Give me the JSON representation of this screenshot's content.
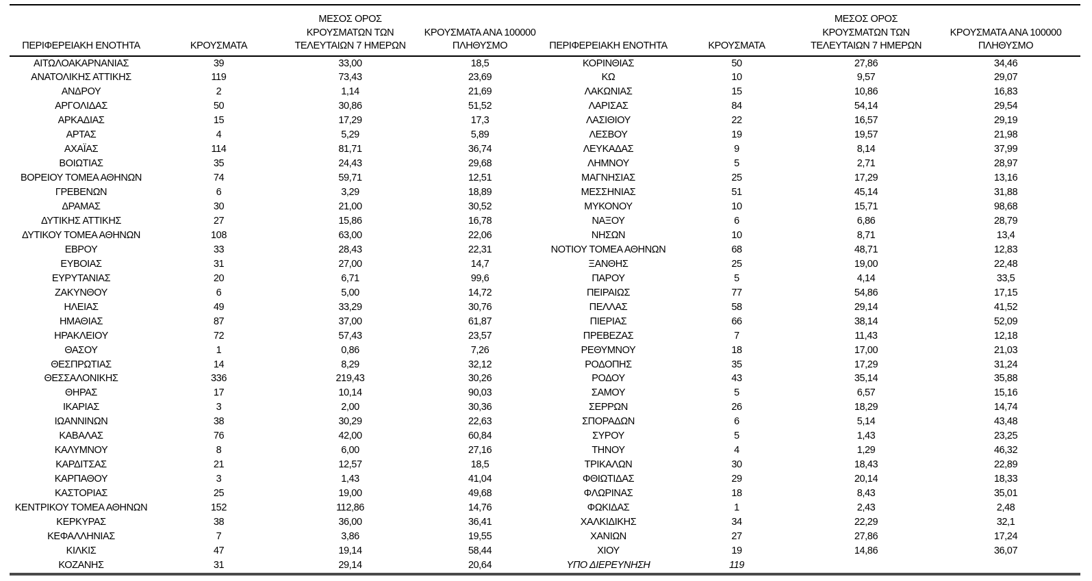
{
  "columns": {
    "region": "ΠΕΡΙΦΕΡΕΙΑΚΗ ΕΝΟΤΗΤΑ",
    "cases": "ΚΡΟΥΣΜΑΤΑ",
    "avg7": "ΜΕΣΟΣ ΟΡΟΣ\nΚΡΟΥΣΜΑΤΩΝ ΤΩΝ\nΤΕΛΕΥΤΑΙΩΝ 7 ΗΜΕΡΩΝ",
    "per100k": "ΚΡΟΥΣΜΑΤΑ ΑΝΑ 100000\nΠΛΗΘΥΣΜΟ"
  },
  "colors": {
    "text": "#000000",
    "rule_top": "#000000",
    "rule_header": "#000000",
    "rule_bottom": "#4a4a4a",
    "background": "#ffffff"
  },
  "left_rows": [
    {
      "region": "ΑΙΤΩΛΟΑΚΑΡΝΑΝΙΑΣ",
      "cases": "39",
      "avg7": "33,00",
      "per100k": "18,5"
    },
    {
      "region": "ΑΝΑΤΟΛΙΚΗΣ ΑΤΤΙΚΗΣ",
      "cases": "119",
      "avg7": "73,43",
      "per100k": "23,69"
    },
    {
      "region": "ΑΝΔΡΟΥ",
      "cases": "2",
      "avg7": "1,14",
      "per100k": "21,69"
    },
    {
      "region": "ΑΡΓΟΛΙΔΑΣ",
      "cases": "50",
      "avg7": "30,86",
      "per100k": "51,52"
    },
    {
      "region": "ΑΡΚΑΔΙΑΣ",
      "cases": "15",
      "avg7": "17,29",
      "per100k": "17,3"
    },
    {
      "region": "ΑΡΤΑΣ",
      "cases": "4",
      "avg7": "5,29",
      "per100k": "5,89"
    },
    {
      "region": "ΑΧΑΪΑΣ",
      "cases": "114",
      "avg7": "81,71",
      "per100k": "36,74"
    },
    {
      "region": "ΒΟΙΩΤΙΑΣ",
      "cases": "35",
      "avg7": "24,43",
      "per100k": "29,68"
    },
    {
      "region": "ΒΟΡΕΙΟΥ ΤΟΜΕΑ ΑΘΗΝΩΝ",
      "cases": "74",
      "avg7": "59,71",
      "per100k": "12,51"
    },
    {
      "region": "ΓΡΕΒΕΝΩΝ",
      "cases": "6",
      "avg7": "3,29",
      "per100k": "18,89"
    },
    {
      "region": "ΔΡΑΜΑΣ",
      "cases": "30",
      "avg7": "21,00",
      "per100k": "30,52"
    },
    {
      "region": "ΔΥΤΙΚΗΣ ΑΤΤΙΚΗΣ",
      "cases": "27",
      "avg7": "15,86",
      "per100k": "16,78"
    },
    {
      "region": "ΔΥΤΙΚΟΥ ΤΟΜΕΑ ΑΘΗΝΩΝ",
      "cases": "108",
      "avg7": "63,00",
      "per100k": "22,06"
    },
    {
      "region": "ΕΒΡΟΥ",
      "cases": "33",
      "avg7": "28,43",
      "per100k": "22,31"
    },
    {
      "region": "ΕΥΒΟΙΑΣ",
      "cases": "31",
      "avg7": "27,00",
      "per100k": "14,7"
    },
    {
      "region": "ΕΥΡΥΤΑΝΙΑΣ",
      "cases": "20",
      "avg7": "6,71",
      "per100k": "99,6"
    },
    {
      "region": "ΖΑΚΥΝΘΟΥ",
      "cases": "6",
      "avg7": "5,00",
      "per100k": "14,72"
    },
    {
      "region": "ΗΛΕΙΑΣ",
      "cases": "49",
      "avg7": "33,29",
      "per100k": "30,76"
    },
    {
      "region": "ΗΜΑΘΙΑΣ",
      "cases": "87",
      "avg7": "37,00",
      "per100k": "61,87"
    },
    {
      "region": "ΗΡΑΚΛΕΙΟΥ",
      "cases": "72",
      "avg7": "57,43",
      "per100k": "23,57"
    },
    {
      "region": "ΘΑΣΟΥ",
      "cases": "1",
      "avg7": "0,86",
      "per100k": "7,26"
    },
    {
      "region": "ΘΕΣΠΡΩΤΙΑΣ",
      "cases": "14",
      "avg7": "8,29",
      "per100k": "32,12"
    },
    {
      "region": "ΘΕΣΣΑΛΟΝΙΚΗΣ",
      "cases": "336",
      "avg7": "219,43",
      "per100k": "30,26"
    },
    {
      "region": "ΘΗΡΑΣ",
      "cases": "17",
      "avg7": "10,14",
      "per100k": "90,03"
    },
    {
      "region": "ΙΚΑΡΙΑΣ",
      "cases": "3",
      "avg7": "2,00",
      "per100k": "30,36"
    },
    {
      "region": "ΙΩΑΝΝΙΝΩΝ",
      "cases": "38",
      "avg7": "30,29",
      "per100k": "22,63"
    },
    {
      "region": "ΚΑΒΑΛΑΣ",
      "cases": "76",
      "avg7": "42,00",
      "per100k": "60,84"
    },
    {
      "region": "ΚΑΛΥΜΝΟΥ",
      "cases": "8",
      "avg7": "6,00",
      "per100k": "27,16"
    },
    {
      "region": "ΚΑΡΔΙΤΣΑΣ",
      "cases": "21",
      "avg7": "12,57",
      "per100k": "18,5"
    },
    {
      "region": "ΚΑΡΠΑΘΟΥ",
      "cases": "3",
      "avg7": "1,43",
      "per100k": "41,04"
    },
    {
      "region": "ΚΑΣΤΟΡΙΑΣ",
      "cases": "25",
      "avg7": "19,00",
      "per100k": "49,68"
    },
    {
      "region": "ΚΕΝΤΡΙΚΟΥ ΤΟΜΕΑ ΑΘΗΝΩΝ",
      "cases": "152",
      "avg7": "112,86",
      "per100k": "14,76"
    },
    {
      "region": "ΚΕΡΚΥΡΑΣ",
      "cases": "38",
      "avg7": "36,00",
      "per100k": "36,41"
    },
    {
      "region": "ΚΕΦΑΛΛΗΝΙΑΣ",
      "cases": "7",
      "avg7": "3,86",
      "per100k": "19,55"
    },
    {
      "region": "ΚΙΛΚΙΣ",
      "cases": "47",
      "avg7": "19,14",
      "per100k": "58,44"
    },
    {
      "region": "ΚΟΖΑΝΗΣ",
      "cases": "31",
      "avg7": "29,14",
      "per100k": "20,64"
    }
  ],
  "right_rows": [
    {
      "region": "ΚΟΡΙΝΘΙΑΣ",
      "cases": "50",
      "avg7": "27,86",
      "per100k": "34,46"
    },
    {
      "region": "ΚΩ",
      "cases": "10",
      "avg7": "9,57",
      "per100k": "29,07"
    },
    {
      "region": "ΛΑΚΩΝΙΑΣ",
      "cases": "15",
      "avg7": "10,86",
      "per100k": "16,83"
    },
    {
      "region": "ΛΑΡΙΣΑΣ",
      "cases": "84",
      "avg7": "54,14",
      "per100k": "29,54"
    },
    {
      "region": "ΛΑΣΙΘΙΟΥ",
      "cases": "22",
      "avg7": "16,57",
      "per100k": "29,19"
    },
    {
      "region": "ΛΕΣΒΟΥ",
      "cases": "19",
      "avg7": "19,57",
      "per100k": "21,98"
    },
    {
      "region": "ΛΕΥΚΑΔΑΣ",
      "cases": "9",
      "avg7": "8,14",
      "per100k": "37,99"
    },
    {
      "region": "ΛΗΜΝΟΥ",
      "cases": "5",
      "avg7": "2,71",
      "per100k": "28,97"
    },
    {
      "region": "ΜΑΓΝΗΣΙΑΣ",
      "cases": "25",
      "avg7": "17,29",
      "per100k": "13,16"
    },
    {
      "region": "ΜΕΣΣΗΝΙΑΣ",
      "cases": "51",
      "avg7": "45,14",
      "per100k": "31,88"
    },
    {
      "region": "ΜΥΚΟΝΟΥ",
      "cases": "10",
      "avg7": "15,71",
      "per100k": "98,68"
    },
    {
      "region": "ΝΑΞΟΥ",
      "cases": "6",
      "avg7": "6,86",
      "per100k": "28,79"
    },
    {
      "region": "ΝΗΣΩΝ",
      "cases": "10",
      "avg7": "8,71",
      "per100k": "13,4"
    },
    {
      "region": "ΝΟΤΙΟΥ ΤΟΜΕΑ ΑΘΗΝΩΝ",
      "cases": "68",
      "avg7": "48,71",
      "per100k": "12,83"
    },
    {
      "region": "ΞΑΝΘΗΣ",
      "cases": "25",
      "avg7": "19,00",
      "per100k": "22,48"
    },
    {
      "region": "ΠΑΡΟΥ",
      "cases": "5",
      "avg7": "4,14",
      "per100k": "33,5"
    },
    {
      "region": "ΠΕΙΡΑΙΩΣ",
      "cases": "77",
      "avg7": "54,86",
      "per100k": "17,15"
    },
    {
      "region": "ΠΕΛΛΑΣ",
      "cases": "58",
      "avg7": "29,14",
      "per100k": "41,52"
    },
    {
      "region": "ΠΙΕΡΙΑΣ",
      "cases": "66",
      "avg7": "38,14",
      "per100k": "52,09"
    },
    {
      "region": "ΠΡΕΒΕΖΑΣ",
      "cases": "7",
      "avg7": "11,43",
      "per100k": "12,18"
    },
    {
      "region": "ΡΕΘΥΜΝΟΥ",
      "cases": "18",
      "avg7": "17,00",
      "per100k": "21,03"
    },
    {
      "region": "ΡΟΔΟΠΗΣ",
      "cases": "35",
      "avg7": "17,29",
      "per100k": "31,24"
    },
    {
      "region": "ΡΟΔΟΥ",
      "cases": "43",
      "avg7": "35,14",
      "per100k": "35,88"
    },
    {
      "region": "ΣΑΜΟΥ",
      "cases": "5",
      "avg7": "6,57",
      "per100k": "15,16"
    },
    {
      "region": "ΣΕΡΡΩΝ",
      "cases": "26",
      "avg7": "18,29",
      "per100k": "14,74"
    },
    {
      "region": "ΣΠΟΡΑΔΩΝ",
      "cases": "6",
      "avg7": "5,14",
      "per100k": "43,48"
    },
    {
      "region": "ΣΥΡΟΥ",
      "cases": "5",
      "avg7": "1,43",
      "per100k": "23,25"
    },
    {
      "region": "ΤΗΝΟΥ",
      "cases": "4",
      "avg7": "1,29",
      "per100k": "46,32"
    },
    {
      "region": "ΤΡΙΚΑΛΩΝ",
      "cases": "30",
      "avg7": "18,43",
      "per100k": "22,89"
    },
    {
      "region": "ΦΘΙΩΤΙΔΑΣ",
      "cases": "29",
      "avg7": "20,14",
      "per100k": "18,33"
    },
    {
      "region": "ΦΛΩΡΙΝΑΣ",
      "cases": "18",
      "avg7": "8,43",
      "per100k": "35,01"
    },
    {
      "region": "ΦΩΚΙΔΑΣ",
      "cases": "1",
      "avg7": "2,43",
      "per100k": "2,48"
    },
    {
      "region": "ΧΑΛΚΙΔΙΚΗΣ",
      "cases": "34",
      "avg7": "22,29",
      "per100k": "32,1"
    },
    {
      "region": "ΧΑΝΙΩΝ",
      "cases": "27",
      "avg7": "27,86",
      "per100k": "17,24"
    },
    {
      "region": "ΧΙΟΥ",
      "cases": "19",
      "avg7": "14,86",
      "per100k": "36,07"
    },
    {
      "region": "ΥΠΟ ΔΙΕΡΕΥΝΗΣΗ",
      "cases": "119",
      "avg7": "",
      "per100k": "",
      "italic": true
    }
  ]
}
